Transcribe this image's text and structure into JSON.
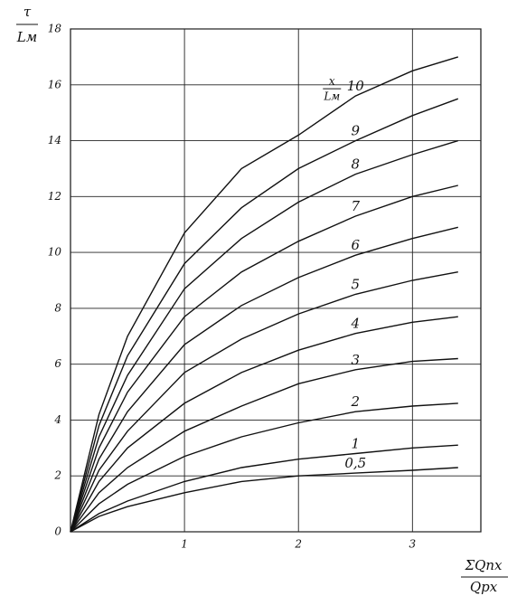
{
  "chart_data": {
    "type": "line",
    "y_label_top": "τ",
    "y_label_bottom": "Lм",
    "x_label_top": "ΣQпх",
    "x_label_bottom": "Qрх",
    "curve_param_top": "x",
    "curve_param_bottom": "Lм",
    "x": [
      0,
      0.25,
      0.5,
      1,
      1.5,
      2,
      2.5,
      3,
      3.4
    ],
    "series": [
      {
        "name": "0,5",
        "color": "#111",
        "values": [
          0,
          0.55,
          0.9,
          1.4,
          1.8,
          2,
          2.1,
          2.2,
          2.3
        ]
      },
      {
        "name": "1",
        "color": "#111",
        "values": [
          0,
          0.65,
          1.1,
          1.8,
          2.3,
          2.6,
          2.8,
          3,
          3.1
        ]
      },
      {
        "name": "2",
        "color": "#111",
        "values": [
          0,
          1,
          1.7,
          2.7,
          3.4,
          3.9,
          4.3,
          4.5,
          4.6
        ]
      },
      {
        "name": "3",
        "color": "#111",
        "values": [
          0,
          1.4,
          2.3,
          3.6,
          4.5,
          5.3,
          5.8,
          6.1,
          6.2
        ]
      },
      {
        "name": "4",
        "color": "#111",
        "values": [
          0,
          1.8,
          3,
          4.6,
          5.7,
          6.5,
          7.1,
          7.5,
          7.7
        ]
      },
      {
        "name": "5",
        "color": "#111",
        "values": [
          0,
          2.2,
          3.6,
          5.7,
          6.9,
          7.8,
          8.5,
          9,
          9.3
        ]
      },
      {
        "name": "6",
        "color": "#111",
        "values": [
          0,
          2.6,
          4.3,
          6.7,
          8.1,
          9.1,
          9.9,
          10.5,
          10.9
        ]
      },
      {
        "name": "7",
        "color": "#111",
        "values": [
          0,
          3,
          5,
          7.7,
          9.3,
          10.4,
          11.3,
          12,
          12.4
        ]
      },
      {
        "name": "8",
        "color": "#111",
        "values": [
          0,
          3.4,
          5.6,
          8.7,
          10.5,
          11.8,
          12.8,
          13.5,
          14
        ]
      },
      {
        "name": "9",
        "color": "#111",
        "values": [
          0,
          3.8,
          6.3,
          9.6,
          11.6,
          13,
          14,
          14.9,
          15.5
        ]
      },
      {
        "name": "10",
        "color": "#111",
        "values": [
          0,
          4.2,
          7,
          10.7,
          13,
          14.2,
          15.6,
          16.5,
          17
        ]
      }
    ],
    "xlim": [
      0,
      3.6
    ],
    "ylim": [
      0,
      18
    ],
    "xticks": [
      1,
      2,
      3
    ],
    "yticks": [
      0,
      2,
      4,
      6,
      8,
      10,
      12,
      14,
      16,
      18
    ],
    "grid": true
  }
}
